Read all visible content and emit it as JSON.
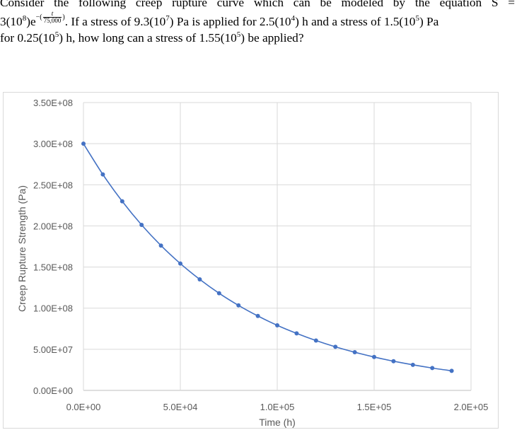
{
  "problem": {
    "line1": "Consider the following creep rupture curve which can be modeled by the equation S =",
    "eq_prefix": "3(10",
    "eq_exp8": "8",
    "eq_e": ")e",
    "eq_minus": "−(",
    "eq_num": "t",
    "eq_den": "75,000",
    "eq_close": ")",
    "line2_rest_a": ". If a stress of 9.3(10",
    "line2_rest_b": ") Pa is applied for 2.5(10",
    "line2_rest_c": ") h and a stress of 1.5(10",
    "line2_rest_d": ") Pa",
    "sup7": "7",
    "sup4": "4",
    "sup5a": "5",
    "line3_a": "for 0.25(10",
    "line3_b": ") h, how long can a stress of 1.55(10",
    "line3_c": ") be applied?",
    "sup5b": "5",
    "sup5c": "5"
  },
  "chart_data": {
    "type": "scatter",
    "xlabel": "Time (h)",
    "ylabel": "Creep Rupture Strength (Pa)",
    "xlim": [
      0,
      200000
    ],
    "ylim": [
      0,
      350000000
    ],
    "x_ticks": [
      0,
      50000,
      100000,
      150000,
      200000
    ],
    "x_tick_labels": [
      "0.0E+00",
      "5.0E+04",
      "1.0E+05",
      "1.5E+05",
      "2.0E+05"
    ],
    "y_ticks": [
      0,
      50000000,
      100000000,
      150000000,
      200000000,
      250000000,
      300000000,
      350000000
    ],
    "y_tick_labels": [
      "0.00E+00",
      "5.00E+07",
      "1.00E+08",
      "1.50E+08",
      "2.00E+08",
      "2.50E+08",
      "3.00E+08",
      "3.50E+08"
    ],
    "grid": true,
    "series_color": "#4472c4",
    "series": [
      {
        "x": [
          0,
          10000,
          20000,
          30000,
          40000,
          50000,
          60000,
          70000,
          80000,
          90000,
          100000,
          110000,
          120000,
          130000,
          140000,
          150000,
          160000,
          170000,
          180000,
          190000
        ],
        "y": [
          300000000,
          262600000,
          229900000,
          201200000,
          176100000,
          154200000,
          135000000,
          118100000,
          103400000,
          90500000,
          79100000,
          69300000,
          60600000,
          53000000,
          46400000,
          40600000,
          35500000,
          31100000,
          27200000,
          23800000
        ]
      }
    ]
  }
}
